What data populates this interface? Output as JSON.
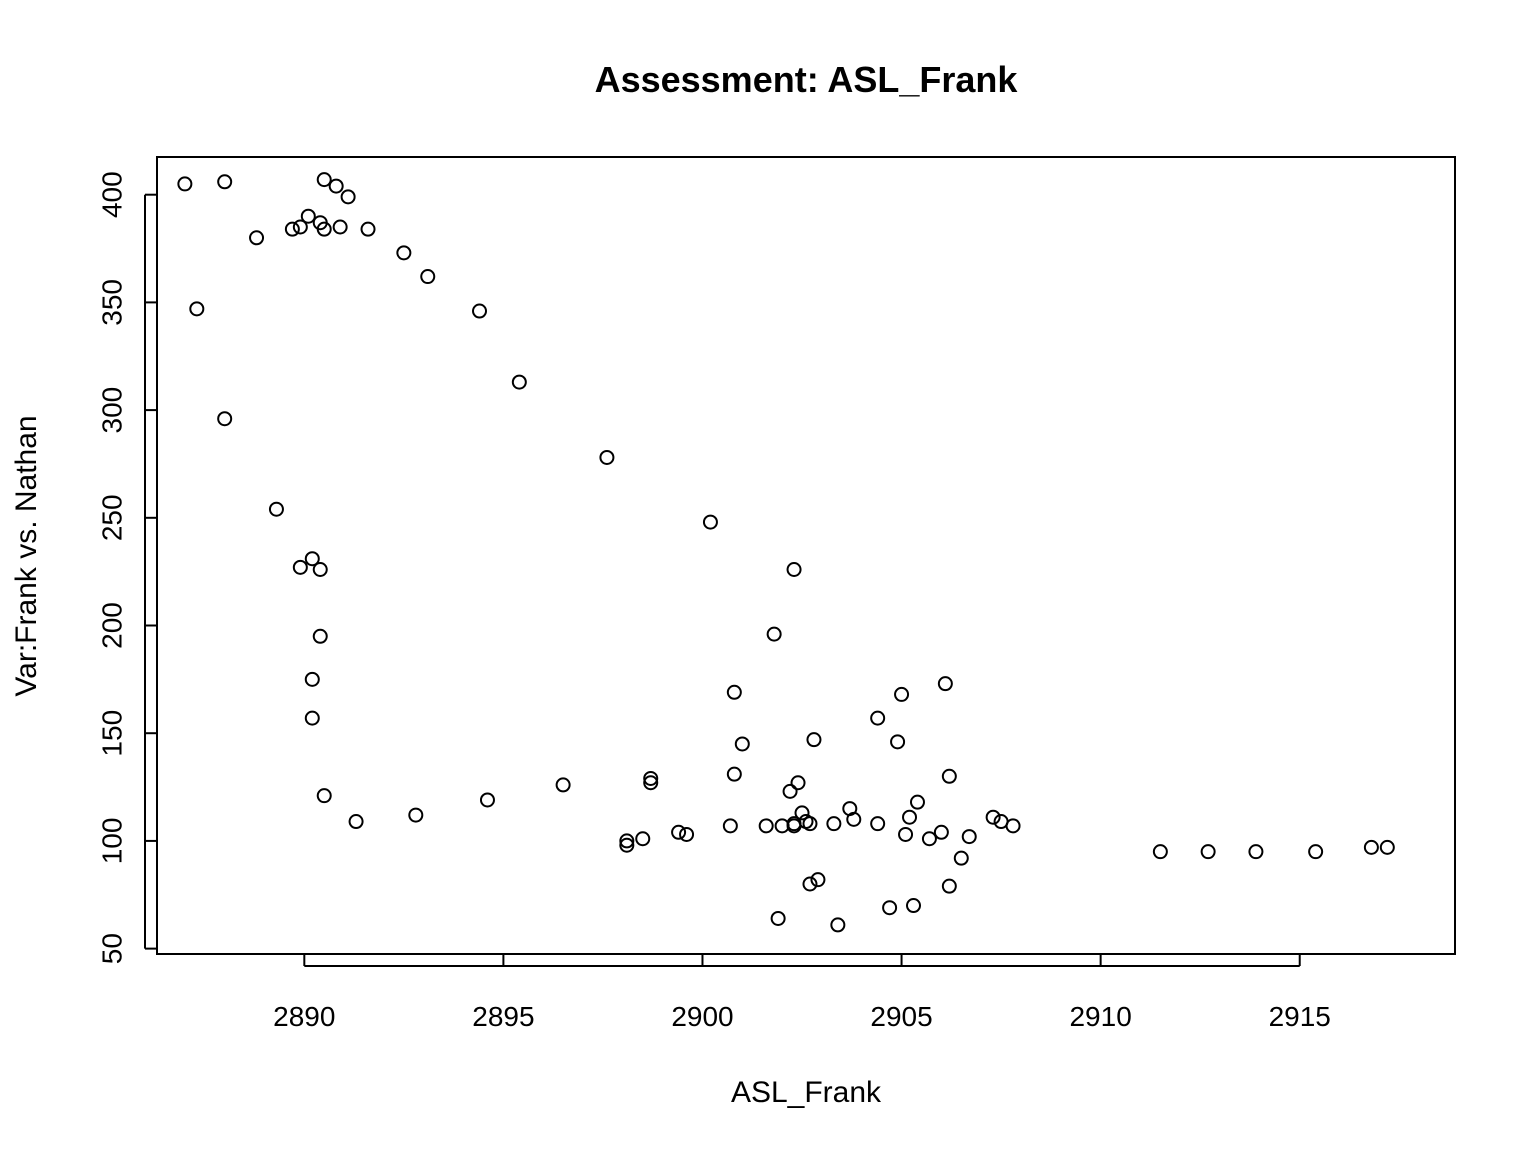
{
  "chart_data": {
    "type": "scatter",
    "title": "Assessment: ASL_Frank",
    "xlabel": "ASL_Frank",
    "ylabel": "Var:Frank vs. Nathan",
    "xlim": [
      2886.3,
      2918.9
    ],
    "ylim": [
      47.5,
      417.5
    ],
    "xticks": [
      2890,
      2895,
      2900,
      2905,
      2910,
      2915
    ],
    "yticks": [
      50,
      100,
      150,
      200,
      250,
      300,
      350,
      400
    ],
    "grid": false,
    "legend": "none",
    "series": [
      {
        "x": [
          2887.0,
          2888.0,
          2890.5,
          2890.8,
          2891.1,
          2890.1,
          2890.4,
          2889.9,
          2889.7,
          2890.5,
          2890.9,
          2891.6,
          2888.8,
          2892.5,
          2893.1,
          2887.3,
          2894.4,
          2895.4,
          2888.0,
          2897.6,
          2889.3,
          2900.2,
          2890.2,
          2889.9,
          2890.4,
          2902.3,
          2890.4,
          2901.8,
          2890.2,
          2906.1,
          2900.8,
          2905.0,
          2890.2,
          2904.4,
          2902.8,
          2904.9,
          2901.0,
          2900.8,
          2906.2,
          2898.7,
          2898.7,
          2902.4,
          2896.5,
          2902.2,
          2890.5,
          2894.6,
          2905.4,
          2903.7,
          2902.5,
          2892.8,
          2905.2,
          2907.3,
          2903.8,
          2891.3,
          2907.5,
          2902.6,
          2902.3,
          2903.3,
          2904.4,
          2907.8,
          2902.7,
          2902.3,
          2901.6,
          2902.0,
          2900.7,
          2899.4,
          2899.6,
          2905.1,
          2906.0,
          2906.7,
          2898.5,
          2905.7,
          2898.1,
          2898.1,
          2916.8,
          2917.2,
          2913.9,
          2911.5,
          2912.7,
          2915.4,
          2906.5,
          2902.9,
          2902.7,
          2906.2,
          2905.3,
          2904.7,
          2901.9,
          2903.4
        ],
        "y": [
          405,
          406,
          407,
          404,
          399,
          390,
          387,
          385,
          384,
          384,
          385,
          384,
          380,
          373,
          362,
          347,
          346,
          313,
          296,
          278,
          254,
          248,
          231,
          227,
          226,
          226,
          195,
          196,
          175,
          173,
          169,
          168,
          157,
          157,
          147,
          146,
          145,
          131,
          130,
          129,
          127,
          127,
          126,
          123,
          121,
          119,
          118,
          115,
          113,
          112,
          111,
          111,
          110,
          109,
          109,
          109,
          108,
          108,
          108,
          107,
          108,
          107,
          107,
          107,
          107,
          104,
          103,
          103,
          104,
          102,
          101,
          101,
          100,
          98,
          97,
          97,
          95,
          95,
          95,
          95,
          92,
          82,
          80,
          79,
          70,
          69,
          64,
          61
        ]
      }
    ]
  }
}
